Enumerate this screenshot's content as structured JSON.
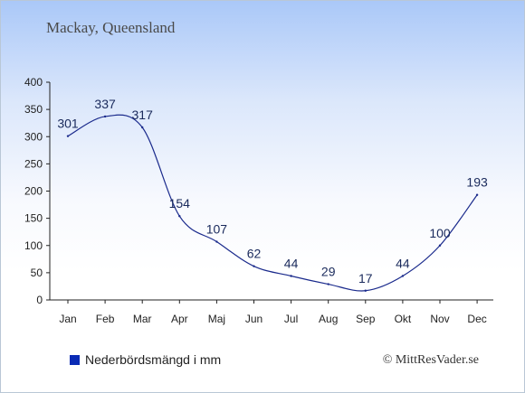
{
  "chart_data": {
    "type": "line",
    "title": "Mackay, Queensland",
    "categories": [
      "Jan",
      "Feb",
      "Mar",
      "Apr",
      "Maj",
      "Jun",
      "Jul",
      "Aug",
      "Sep",
      "Okt",
      "Nov",
      "Dec"
    ],
    "series": [
      {
        "name": "Nederbördsmängd i mm",
        "values": [
          301,
          337,
          317,
          154,
          107,
          62,
          44,
          29,
          17,
          44,
          100,
          193
        ]
      }
    ],
    "xlabel": "",
    "ylabel": "",
    "ylim": [
      0,
      400
    ],
    "yticks": [
      0,
      50,
      100,
      150,
      200,
      250,
      300,
      350,
      400
    ],
    "grid": false,
    "legend_position": "bottom-left",
    "line_color": "#1a2a8c",
    "legend_color": "#0a2bb5"
  },
  "credit": "© MittResVader.se"
}
